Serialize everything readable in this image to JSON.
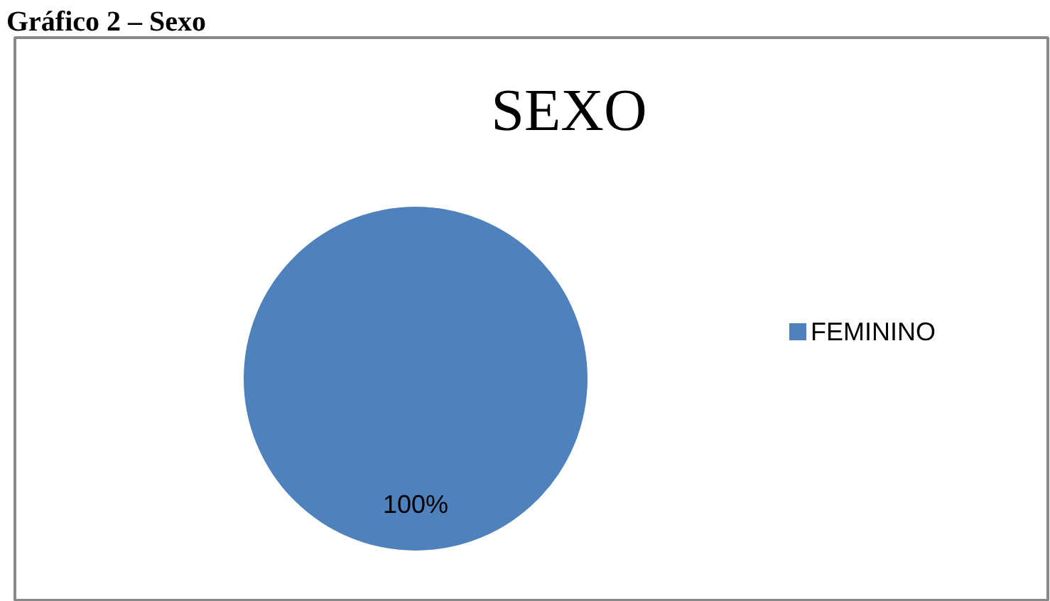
{
  "chart_data": {
    "type": "pie",
    "title": "SEXO",
    "annotations": [
      "Gráfico 2 – Sexo"
    ],
    "categories": [
      "FEMININO"
    ],
    "values": [
      100
    ],
    "colors": [
      "#4f81bd"
    ],
    "value_labels": [
      "100%"
    ],
    "legend": "right"
  }
}
